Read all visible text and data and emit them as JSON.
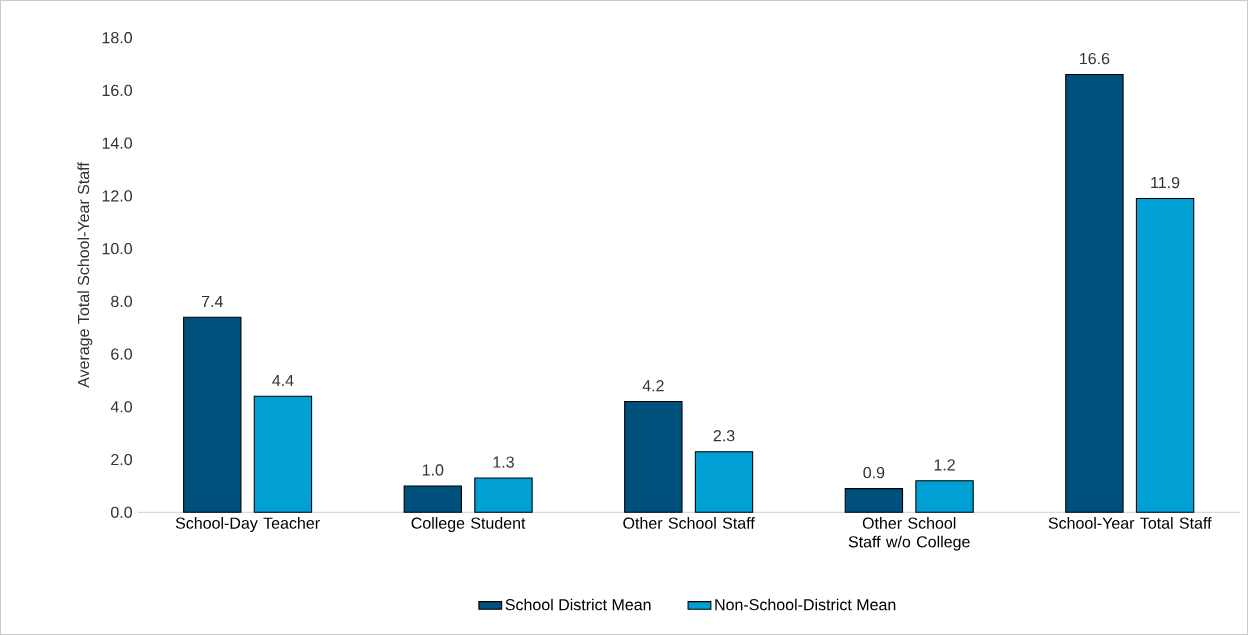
{
  "chart_data": {
    "type": "bar",
    "categories": [
      "School-Day Teacher",
      "College Student",
      "Other School Staff",
      "Other School Staff w/o College",
      "School-Year Total Staff"
    ],
    "ylabel": "Average Total School-Year Staff",
    "series": [
      {
        "name": "School District Mean",
        "color": "#00507d",
        "values": [
          7.4,
          1.0,
          4.2,
          0.9,
          16.6
        ],
        "value_labels": [
          "7.4",
          "1.0",
          "4.2",
          "0.9",
          "16.6"
        ]
      },
      {
        "name": "Non-School-District Mean",
        "color": "#009fd4",
        "values": [
          4.4,
          1.3,
          2.3,
          1.2,
          11.9
        ],
        "value_labels": [
          "4.4",
          "1.3",
          "2.3",
          "1.2",
          "11.9"
        ]
      }
    ],
    "ylim": [
      0,
      18
    ],
    "yticks": [
      {
        "value": 0,
        "label": "0.0"
      },
      {
        "value": 2,
        "label": "2.0"
      },
      {
        "value": 4,
        "label": "4.0"
      },
      {
        "value": 6,
        "label": "6.0"
      },
      {
        "value": 8,
        "label": "8.0"
      },
      {
        "value": 10,
        "label": "10.0"
      },
      {
        "value": 12,
        "label": "12.0"
      },
      {
        "value": 14,
        "label": "14.0"
      },
      {
        "value": 16,
        "label": "16.0"
      },
      {
        "value": 18,
        "label": "18.0"
      }
    ],
    "grid": false,
    "legend": "bottom"
  }
}
